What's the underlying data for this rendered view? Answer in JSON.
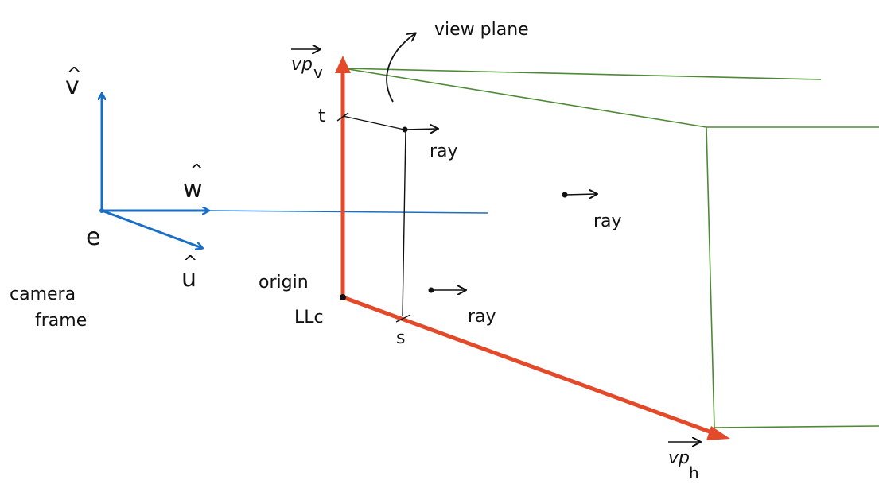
{
  "labels": {
    "v_hat": "v",
    "w_hat": "w",
    "u_hat": "u",
    "hat_mark": "^",
    "eye": "e",
    "camera_frame_line1": "camera",
    "camera_frame_line2": "frame",
    "view_plane": "view plane",
    "vp_v": "vp",
    "vp_v_sub": "v",
    "vp_h": "vp",
    "vp_h_sub": "h",
    "origin": "origin",
    "lower_corner": "LLc",
    "t": "t",
    "s": "s",
    "ray_1": "ray",
    "ray_2": "ray",
    "ray_3": "ray"
  },
  "colors": {
    "camera_axes": "#1a6fc4",
    "viewport_vectors": "#e34a2a",
    "frustum": "#4e8a35",
    "ink": "#111111"
  }
}
